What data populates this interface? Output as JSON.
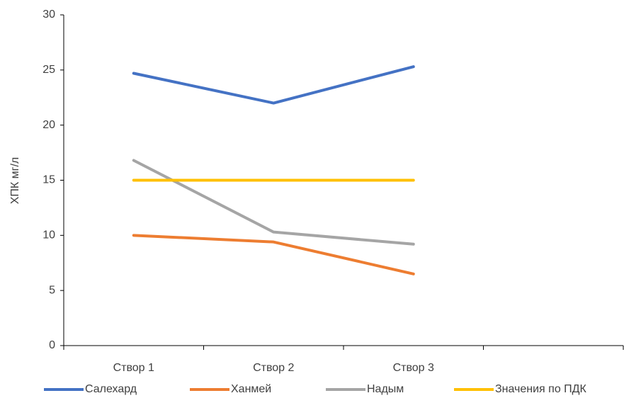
{
  "chart_data": {
    "type": "line",
    "y_label": "ХПК мг/л",
    "categories": [
      "Створ 1",
      "Створ 2",
      "Створ 3",
      null
    ],
    "series": [
      {
        "name": "Салехард",
        "color": "#4472c4",
        "values": [
          24.7,
          22.0,
          25.3,
          null
        ]
      },
      {
        "name": "Ханмей",
        "color": "#ed7d31",
        "values": [
          10.0,
          9.4,
          6.5,
          null
        ]
      },
      {
        "name": "Надым",
        "color": "#a5a5a5",
        "values": [
          16.8,
          10.3,
          9.2,
          null
        ]
      },
      {
        "name": "Значения по ПДК",
        "color": "#ffc000",
        "values": [
          15,
          15,
          15,
          null
        ]
      }
    ],
    "ylim": [
      0,
      30
    ],
    "yticks": [
      0,
      5,
      10,
      15,
      20,
      25,
      30
    ],
    "legend": "bottom"
  }
}
